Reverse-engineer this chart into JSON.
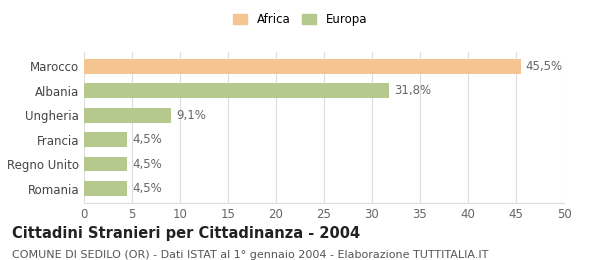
{
  "categories": [
    "Marocco",
    "Albania",
    "Ungheria",
    "Francia",
    "Regno Unito",
    "Romania"
  ],
  "values": [
    45.5,
    31.8,
    9.1,
    4.5,
    4.5,
    4.5
  ],
  "labels": [
    "45,5%",
    "31,8%",
    "9,1%",
    "4,5%",
    "4,5%",
    "4,5%"
  ],
  "colors": [
    "#f5c490",
    "#b5c98e",
    "#b5c98e",
    "#b5c98e",
    "#b5c98e",
    "#b5c98e"
  ],
  "legend_labels": [
    "Africa",
    "Europa"
  ],
  "legend_colors": [
    "#f5c490",
    "#b5c98e"
  ],
  "xlim": [
    0,
    50
  ],
  "xticks": [
    0,
    5,
    10,
    15,
    20,
    25,
    30,
    35,
    40,
    45,
    50
  ],
  "title": "Cittadini Stranieri per Cittadinanza - 2004",
  "subtitle": "COMUNE DI SEDILO (OR) - Dati ISTAT al 1° gennaio 2004 - Elaborazione TUTTITALIA.IT",
  "background_color": "#ffffff",
  "grid_color": "#dddddd",
  "bar_height": 0.6,
  "label_fontsize": 8.5,
  "title_fontsize": 10.5,
  "subtitle_fontsize": 8.0
}
